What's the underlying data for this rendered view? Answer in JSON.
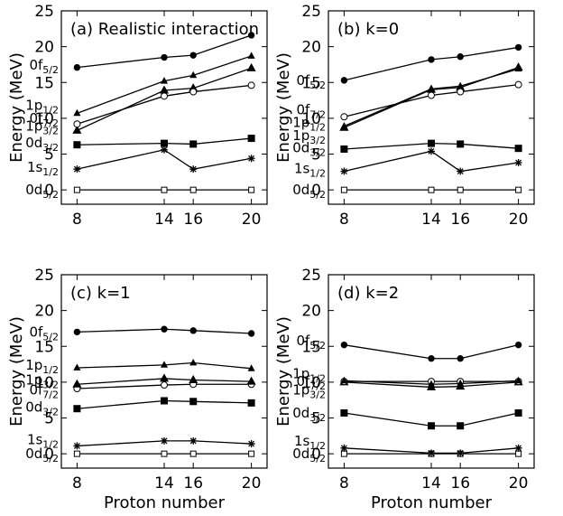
{
  "chart_data": [
    {
      "type": "line",
      "title": "(a) Realistic interaction",
      "xlabel": "",
      "ylabel": "Energy (MeV)",
      "x": [
        8,
        14,
        16,
        20
      ],
      "xticks": [
        "8",
        "14",
        "16",
        "20"
      ],
      "yticks": [
        "0",
        "5",
        "10",
        "15",
        "20",
        "25"
      ],
      "ylim": [
        -2,
        25
      ],
      "grid": false,
      "series": [
        {
          "name": "0d5/2",
          "marker": "square-open",
          "values": [
            0,
            0,
            0,
            0
          ],
          "label_y": 0
        },
        {
          "name": "1s1/2",
          "marker": "star",
          "values": [
            2.9,
            5.6,
            2.9,
            4.4
          ],
          "label_y": 3.2
        },
        {
          "name": "0d3/2",
          "marker": "square-filled",
          "values": [
            6.3,
            6.5,
            6.4,
            7.2
          ],
          "label_y": 6.6
        },
        {
          "name": "1p3/2",
          "marker": "triangle",
          "values": [
            8.3,
            13.9,
            14.2,
            17.0
          ],
          "label_y": 8.9
        },
        {
          "name": "0f7/2",
          "marker": "circle-open",
          "values": [
            9.2,
            13.1,
            13.7,
            14.6
          ],
          "label_y": 10.0
        },
        {
          "name": "1p1/2",
          "marker": "triangle-small",
          "values": [
            10.7,
            15.2,
            16.0,
            18.7
          ],
          "label_y": 11.8
        },
        {
          "name": "0f5/2",
          "marker": "circle-filled",
          "values": [
            17.1,
            18.5,
            18.8,
            21.6
          ],
          "label_y": 17.4
        }
      ]
    },
    {
      "type": "line",
      "title": "(b) k=0",
      "xlabel": "",
      "ylabel": "Energy (MeV)",
      "x": [
        8,
        14,
        16,
        20
      ],
      "xticks": [
        "8",
        "14",
        "16",
        "20"
      ],
      "yticks": [
        "0",
        "5",
        "10",
        "15",
        "20",
        "25"
      ],
      "ylim": [
        -2,
        25
      ],
      "grid": false,
      "series": [
        {
          "name": "0d5/2",
          "marker": "square-open",
          "values": [
            0,
            0,
            0,
            0
          ],
          "label_y": 0
        },
        {
          "name": "1s1/2",
          "marker": "star",
          "values": [
            2.6,
            5.4,
            2.6,
            3.8
          ],
          "label_y": 3.0
        },
        {
          "name": "0d3/2",
          "marker": "square-filled",
          "values": [
            5.7,
            6.5,
            6.4,
            5.8
          ],
          "label_y": 5.9
        },
        {
          "name": "1p3/2",
          "marker": "triangle",
          "values": [
            8.7,
            14.0,
            14.3,
            17.1
          ],
          "label_y": 7.6
        },
        {
          "name": "1p1/2",
          "marker": "triangle-small",
          "values": [
            8.9,
            14.1,
            14.5,
            16.9
          ],
          "label_y": 9.4
        },
        {
          "name": "0f7/2",
          "marker": "circle-open",
          "values": [
            10.2,
            13.2,
            13.7,
            14.7
          ],
          "label_y": 11.2
        },
        {
          "name": "0f5/2",
          "marker": "circle-filled",
          "values": [
            15.3,
            18.2,
            18.6,
            19.9
          ],
          "label_y": 15.3
        }
      ]
    },
    {
      "type": "line",
      "title": "(c) k=1",
      "xlabel": "Proton number",
      "ylabel": "Energy (MeV)",
      "x": [
        8,
        14,
        16,
        20
      ],
      "xticks": [
        "8",
        "14",
        "16",
        "20"
      ],
      "yticks": [
        "0",
        "5",
        "10",
        "15",
        "20",
        "25"
      ],
      "ylim": [
        -2,
        25
      ],
      "grid": false,
      "series": [
        {
          "name": "0d5/2",
          "marker": "square-open",
          "values": [
            0,
            0,
            0,
            0
          ],
          "label_y": 0
        },
        {
          "name": "1s1/2",
          "marker": "star",
          "values": [
            1.1,
            1.8,
            1.8,
            1.4
          ],
          "label_y": 2.0
        },
        {
          "name": "0d3/2",
          "marker": "square-filled",
          "values": [
            6.3,
            7.4,
            7.3,
            7.1
          ],
          "label_y": 6.5
        },
        {
          "name": "0f7/2",
          "marker": "circle-open",
          "values": [
            9.1,
            9.6,
            9.7,
            9.7
          ],
          "label_y": 8.9
        },
        {
          "name": "1p3/2",
          "marker": "triangle",
          "values": [
            9.7,
            10.5,
            10.3,
            10.1
          ],
          "label_y": 10.3
        },
        {
          "name": "1p1/2",
          "marker": "triangle-small",
          "values": [
            12.0,
            12.4,
            12.7,
            11.9
          ],
          "label_y": 12.4
        },
        {
          "name": "0f5/2",
          "marker": "circle-filled",
          "values": [
            17.0,
            17.4,
            17.2,
            16.8
          ],
          "label_y": 17.0
        }
      ]
    },
    {
      "type": "line",
      "title": "(d) k=2",
      "xlabel": "Proton number",
      "ylabel": "Energy (MeV)",
      "x": [
        8,
        14,
        16,
        20
      ],
      "xticks": [
        "8",
        "14",
        "16",
        "20"
      ],
      "yticks": [
        "0",
        "5",
        "10",
        "15",
        "20",
        "25"
      ],
      "ylim": [
        -2,
        25
      ],
      "grid": false,
      "series": [
        {
          "name": "0d5/2",
          "marker": "square-open",
          "values": [
            0,
            0,
            0,
            0
          ],
          "label_y": 0
        },
        {
          "name": "1s1/2",
          "marker": "star",
          "values": [
            0.8,
            0.1,
            0.1,
            0.8
          ],
          "label_y": 1.8
        },
        {
          "name": "0d3/2",
          "marker": "square-filled",
          "values": [
            5.7,
            3.9,
            3.9,
            5.7
          ],
          "label_y": 5.7
        },
        {
          "name": "1p3/2",
          "marker": "triangle",
          "values": [
            10.0,
            9.3,
            9.4,
            10.0
          ],
          "label_y": 8.9
        },
        {
          "name": "0f7/2",
          "marker": "circle-open",
          "values": [
            10.1,
            10.1,
            10.1,
            10.1
          ],
          "label_y": 10.1
        },
        {
          "name": "1p1/2",
          "marker": "triangle-small",
          "values": [
            10.2,
            9.7,
            9.8,
            10.2
          ],
          "label_y": 11.2
        },
        {
          "name": "0f5/2",
          "marker": "circle-filled",
          "values": [
            15.2,
            13.3,
            13.3,
            15.2
          ],
          "label_y": 15.8
        }
      ]
    }
  ]
}
